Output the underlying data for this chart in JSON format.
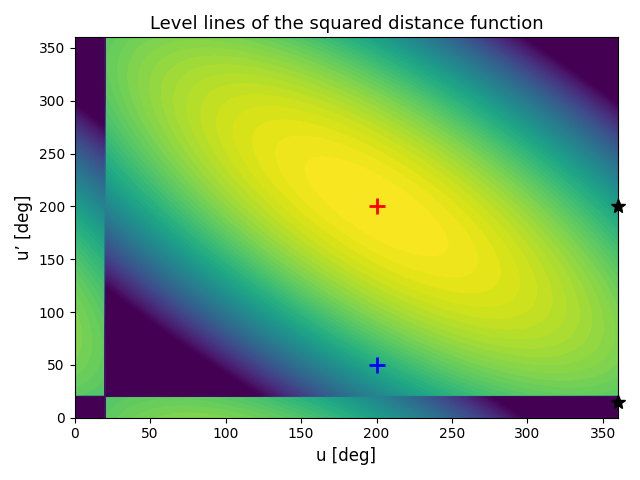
{
  "title": "Level lines of the squared distance function",
  "xlabel": "u [deg]",
  "ylabel": "u’ [deg]",
  "xlim": [
    0,
    360
  ],
  "ylim": [
    0,
    360
  ],
  "xticks": [
    0,
    50,
    100,
    150,
    200,
    250,
    300,
    350
  ],
  "yticks": [
    0,
    50,
    100,
    150,
    200,
    250,
    300,
    350
  ],
  "red_plus": [
    200,
    200
  ],
  "blue_plus": [
    200,
    50
  ],
  "star1": [
    360,
    200
  ],
  "star2": [
    360,
    15
  ],
  "n_levels": 60,
  "colormap": "viridis_r",
  "figsize": [
    6.4,
    4.8
  ],
  "dpi": 100,
  "u0": 200,
  "up0": 200,
  "a": 1.0,
  "c": 1.0,
  "b": 0.75
}
